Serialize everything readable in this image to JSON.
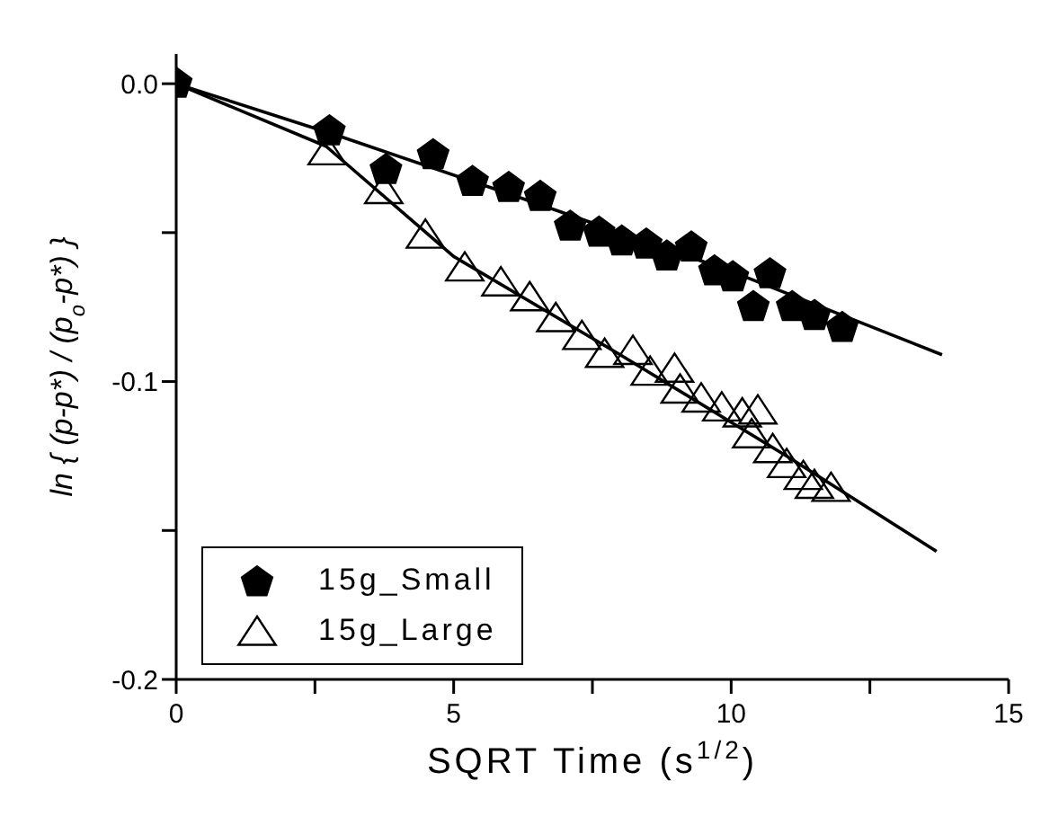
{
  "chart_data": {
    "type": "scatter",
    "xlabel": "SQRT Time (s$^{1/2}$)",
    "ylabel": "ln { (p-p*) / (p$_{o}$-p*) }",
    "xlim": [
      0,
      15
    ],
    "ylim": [
      -0.2,
      0.01
    ],
    "xticks": [
      0,
      {
        "value": 2.5,
        "label": null
      },
      5,
      {
        "value": 7.5,
        "label": null
      },
      10,
      {
        "value": 12.5,
        "label": null
      },
      15
    ],
    "yticks": [
      {
        "value": -0.2,
        "label": "-0.2"
      },
      {
        "value": -0.15,
        "label": null
      },
      {
        "value": -0.1,
        "label": "-0.1"
      },
      {
        "value": -0.05,
        "label": null
      },
      {
        "value": 0,
        "label": "0.0"
      }
    ],
    "grid": false,
    "legend": "bottom left",
    "series": [
      {
        "name": "15g_Small",
        "color": "#000000",
        "x": [
          0,
          2.76,
          3.78,
          4.63,
          5.34,
          5.99,
          6.56,
          7.1,
          7.62,
          8.03,
          8.47,
          8.84,
          9.28,
          9.7,
          10.03,
          10.4,
          10.7,
          11.1,
          11.5,
          12.0
        ],
        "values": [
          0,
          -0.016,
          -0.029,
          -0.024,
          -0.033,
          -0.035,
          -0.038,
          -0.048,
          -0.05,
          -0.053,
          -0.054,
          -0.058,
          -0.055,
          -0.063,
          -0.065,
          -0.075,
          -0.064,
          -0.075,
          -0.078,
          -0.082
        ]
      },
      {
        "name": "15g_Large",
        "marker": "triangle",
        "color": "#000000",
        "x": [
          2.72,
          3.74,
          4.49,
          5.2,
          5.85,
          6.37,
          6.84,
          7.31,
          7.72,
          8.23,
          8.54,
          8.98,
          9.08,
          9.46,
          9.83,
          10.2,
          10.48,
          10.37,
          10.75,
          11.0,
          11.3,
          11.5,
          11.8
        ],
        "values": [
          -0.023,
          -0.036,
          -0.051,
          -0.062,
          -0.067,
          -0.072,
          -0.079,
          -0.085,
          -0.091,
          -0.09,
          -0.097,
          -0.096,
          -0.103,
          -0.106,
          -0.109,
          -0.111,
          -0.11,
          -0.118,
          -0.123,
          -0.128,
          -0.132,
          -0.135,
          -0.136
        ]
      },
      {
        "type": "line",
        "marker": "none",
        "color": "#000000",
        "x": [
          0,
          3,
          6,
          10,
          13.8
        ],
        "values": [
          0,
          -0.018,
          -0.037,
          -0.063,
          -0.091
        ]
      },
      {
        "type": "line",
        "marker": "none",
        "color": "#000000",
        "x": [
          0,
          2.7,
          5,
          8,
          11,
          13.7
        ],
        "values": [
          0,
          -0.021,
          -0.058,
          -0.091,
          -0.125,
          -0.157
        ]
      }
    ]
  }
}
